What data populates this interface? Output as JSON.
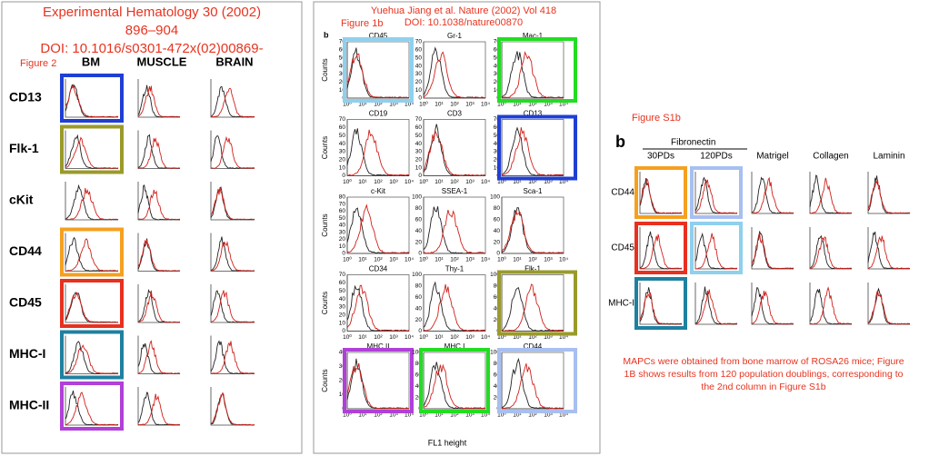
{
  "left": {
    "title_lines": [
      "Experimental Hematology 30 (2002)",
      "896–904",
      "DOI: 10.1016/s0301-472x(02)00869-"
    ],
    "figure_label": "Figure 2",
    "columns": [
      "BM",
      "MUSCLE",
      "BRAIN"
    ],
    "rows": [
      {
        "label": "CD13",
        "box": "#1f3fd4"
      },
      {
        "label": "Flk-1",
        "box": "#9a9a2a"
      },
      {
        "label": "cKit",
        "box": null
      },
      {
        "label": "CD44",
        "box": "#f5a020"
      },
      {
        "label": "CD45",
        "box": "#e83020"
      },
      {
        "label": "MHC-I",
        "box": "#1f80a0"
      },
      {
        "label": "MHC-II",
        "box": "#b040d8"
      }
    ]
  },
  "middle": {
    "header_lines": [
      "Yuehua Jiang et al. Nature (2002) Vol 418",
      "DOI: 10.1038/nature00870"
    ],
    "figure_label": "Figure 1b",
    "panel_letter": "b",
    "y_label": "Counts",
    "x_label": "FL1 height",
    "x_ticks": [
      "10⁰",
      "10¹",
      "10²",
      "10³",
      "10⁴"
    ],
    "plots": [
      {
        "label": "CD45",
        "box": "#8fd0ee",
        "yticks": [
          0,
          10,
          20,
          30,
          40,
          50,
          60,
          70
        ]
      },
      {
        "label": "Gr-1",
        "box": null,
        "yticks": [
          0,
          10,
          20,
          30,
          40,
          50,
          60,
          70
        ]
      },
      {
        "label": "Mac-1",
        "box": "#22dd22",
        "yticks": [
          0,
          10,
          20,
          30,
          40,
          50,
          60,
          70
        ]
      },
      {
        "label": "CD19",
        "box": null,
        "yticks": [
          0,
          10,
          20,
          30,
          40,
          50,
          60,
          70
        ]
      },
      {
        "label": "CD3",
        "box": null,
        "yticks": [
          0,
          10,
          20,
          30,
          40,
          50,
          60,
          70
        ]
      },
      {
        "label": "CD13",
        "box": "#1f3fd4",
        "yticks": [
          0,
          10,
          20,
          30,
          40,
          50,
          60,
          70
        ]
      },
      {
        "label": "c-Kit",
        "box": null,
        "yticks": [
          0,
          10,
          20,
          30,
          40,
          50,
          60,
          70,
          80
        ]
      },
      {
        "label": "SSEA-1",
        "box": null,
        "yticks": [
          0,
          20,
          40,
          60,
          80,
          100
        ]
      },
      {
        "label": "Sca-1",
        "box": null,
        "yticks": [
          0,
          20,
          40,
          60,
          80,
          100
        ]
      },
      {
        "label": "CD34",
        "box": null,
        "yticks": [
          0,
          10,
          20,
          30,
          40,
          50,
          60,
          70
        ]
      },
      {
        "label": "Thy-1",
        "box": null,
        "yticks": [
          0,
          20,
          40,
          60,
          80,
          100
        ]
      },
      {
        "label": "Flk-1",
        "box": "#9a9a2a",
        "yticks": [
          0,
          20,
          40,
          60,
          80,
          100
        ]
      },
      {
        "label": "MHC II",
        "box": "#b040d8",
        "yticks": [
          0,
          10,
          20,
          30,
          40
        ]
      },
      {
        "label": "MHC I",
        "box": "#22dd22",
        "yticks": [
          0,
          20,
          40,
          60,
          80,
          100
        ]
      },
      {
        "label": "CD44",
        "box": "#a8bff0",
        "yticks": [
          0,
          20,
          40,
          60,
          80,
          100
        ]
      }
    ]
  },
  "right": {
    "figure_label": "Figure S1b",
    "panel_letter": "b",
    "group_label": "Fibronectin",
    "columns": [
      "30PDs",
      "120PDs",
      "Matrigel",
      "Collagen",
      "Laminin"
    ],
    "rows": [
      {
        "label": "CD44",
        "boxes": [
          "#f5a020",
          "#a8bff0",
          null,
          null,
          null
        ]
      },
      {
        "label": "CD45",
        "boxes": [
          "#e83020",
          "#8fd0ee",
          null,
          null,
          null
        ]
      },
      {
        "label": "MHC-I",
        "boxes": [
          "#1f80a0",
          null,
          null,
          null,
          null
        ]
      }
    ],
    "note_lines": [
      "MAPCs were obtained from bone marrow of ROSA26 mice; Figure",
      "1B shows results from 120 population doublings, corresponding to",
      "the 2nd column in Figure S1b"
    ]
  }
}
